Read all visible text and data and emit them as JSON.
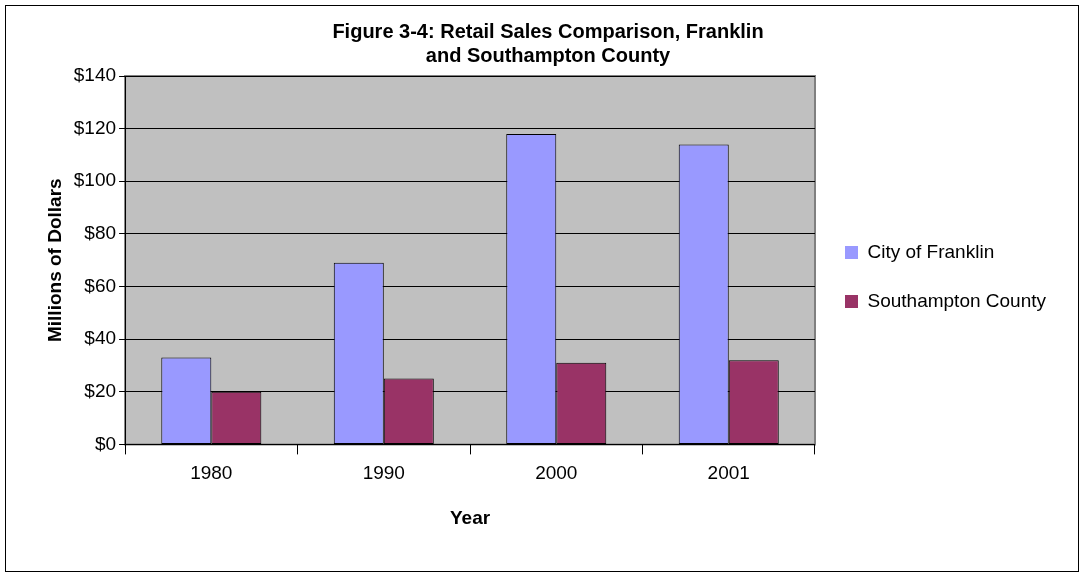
{
  "chart_data": {
    "type": "bar",
    "title": "Figure 3-4: Retail Sales Comparison, Franklin and Southampton County",
    "xlabel": "Year",
    "ylabel": "Millions of Dollars",
    "categories": [
      "1980",
      "1990",
      "2000",
      "2001"
    ],
    "series": [
      {
        "name": "City of Franklin",
        "color": "#9999ff",
        "values": [
          33,
          69,
          118,
          114
        ]
      },
      {
        "name": "Southampton County",
        "color": "#993366",
        "values": [
          20,
          25,
          31,
          32
        ]
      }
    ],
    "ylim": [
      0,
      140
    ],
    "yticks": [
      {
        "value": 0,
        "label": "$0"
      },
      {
        "value": 20,
        "label": "$20"
      },
      {
        "value": 40,
        "label": "$40"
      },
      {
        "value": 60,
        "label": "$60"
      },
      {
        "value": 80,
        "label": "$80"
      },
      {
        "value": 100,
        "label": "$100"
      },
      {
        "value": 120,
        "label": "$120"
      },
      {
        "value": 140,
        "label": "$140"
      }
    ],
    "grid": "y",
    "legend": "right"
  }
}
